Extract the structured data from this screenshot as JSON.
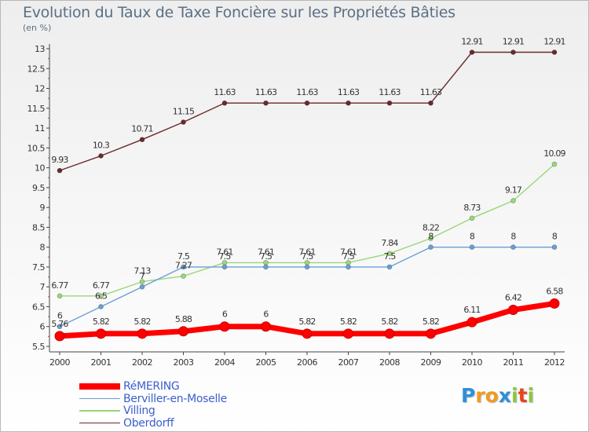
{
  "chart_data": {
    "type": "line",
    "title": "Evolution du Taux de Taxe Foncière sur les Propriétés Bâties",
    "subtitle": "(en %)",
    "xlabel": "",
    "ylabel": "",
    "x": [
      "2000",
      "2001",
      "2002",
      "2003",
      "2004",
      "2005",
      "2006",
      "2007",
      "2008",
      "2009",
      "2010",
      "2011",
      "2012"
    ],
    "ylim": [
      5.5,
      13
    ],
    "yticks": [
      "5.5",
      "6",
      "6.5",
      "7",
      "7.5",
      "8",
      "8.5",
      "9",
      "9.5",
      "10",
      "10.5",
      "11",
      "11.5",
      "12",
      "12.5",
      "13"
    ],
    "grid": false,
    "legend_position": "bottom-left",
    "series": [
      {
        "name": "RéMERING",
        "color": "#ff0000",
        "values": [
          5.76,
          5.82,
          5.82,
          5.88,
          6,
          6,
          5.82,
          5.82,
          5.82,
          5.82,
          6.11,
          6.42,
          6.58
        ],
        "labels": [
          "5.76",
          "5.82",
          "5.82",
          "5.88",
          "6",
          "6",
          "5.82",
          "5.82",
          "5.82",
          "5.82",
          "6.11",
          "6.42",
          "6.58"
        ]
      },
      {
        "name": "Berviller-en-Moselle",
        "color": "#6a9fd4",
        "values": [
          6,
          6.5,
          7,
          7.5,
          7.5,
          7.5,
          7.5,
          7.5,
          7.5,
          8,
          8,
          8,
          8
        ],
        "labels": [
          "6",
          "6.5",
          "7",
          "7.5",
          "7.5",
          "7.5",
          "7.5",
          "7.5",
          "7.5",
          "8",
          "8",
          "8",
          "8"
        ]
      },
      {
        "name": "Villing",
        "color": "#9ad67a",
        "values": [
          6.77,
          6.77,
          7.13,
          7.27,
          7.61,
          7.61,
          7.61,
          7.61,
          7.84,
          8.22,
          8.73,
          9.17,
          10.09
        ],
        "labels": [
          "6.77",
          "6.77",
          "7.13",
          "7.27",
          "7.61",
          "7.61",
          "7.61",
          "7.61",
          "7.84",
          "8.22",
          "8.73",
          "9.17",
          "10.09"
        ]
      },
      {
        "name": "Oberdorff",
        "color": "#6b2a2a",
        "values": [
          9.93,
          10.3,
          10.71,
          11.15,
          11.63,
          11.63,
          11.63,
          11.63,
          11.63,
          11.63,
          12.91,
          12.91,
          12.91
        ],
        "labels": [
          "9.93",
          "10.3",
          "10.71",
          "11.15",
          "11.63",
          "11.63",
          "11.63",
          "11.63",
          "11.63",
          "11.63",
          "12.91",
          "12.91",
          "12.91"
        ]
      }
    ]
  },
  "logo": {
    "letters": [
      "P",
      "r",
      "o",
      "x",
      "i",
      "t",
      "i"
    ],
    "colors": [
      "#2e8fd8",
      "#f29a1e",
      "#f29a1e",
      "#2e8fd8",
      "#8cc63f",
      "#e8441a",
      "#8cc63f"
    ]
  }
}
